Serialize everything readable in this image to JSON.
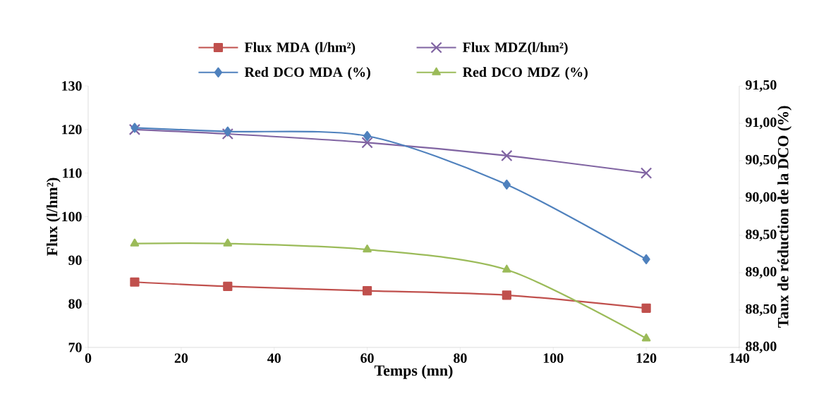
{
  "chart_data": {
    "type": "line",
    "xlabel": "Temps (mn)",
    "ylabel": "Flux (l/hm²)",
    "y2label": "Taux de réduction de la DCO (%)",
    "x": [
      10,
      30,
      60,
      90,
      120
    ],
    "series": [
      {
        "name": "Flux MDA (l/hm²)",
        "color": "#c0504d",
        "marker": "square",
        "values": [
          85,
          84,
          83,
          82,
          79
        ]
      },
      {
        "name": "Flux MDZ(l/hm²)",
        "color": "#8064a2",
        "marker": "cross",
        "values": [
          120,
          119,
          117,
          114,
          110
        ]
      },
      {
        "name": "Red DCO MDA (%)",
        "color": "#4f81bd",
        "marker": "diamond",
        "axis": "y2",
        "values": [
          90.94,
          90.89,
          90.83,
          90.18,
          89.18
        ]
      },
      {
        "name": "Red DCO MDZ (%)",
        "color": "#9bbb59",
        "marker": "triangle",
        "axis": "y2",
        "values": [
          89.39,
          89.39,
          89.31,
          89.04,
          88.12
        ]
      }
    ],
    "xlim": [
      0,
      140
    ],
    "xticks": [
      0,
      20,
      40,
      60,
      80,
      100,
      120,
      140
    ],
    "ylim": [
      70,
      130
    ],
    "yticks": [
      70,
      80,
      90,
      100,
      110,
      120,
      130
    ],
    "y2lim": [
      88,
      91.5
    ],
    "y2ticks": [
      {
        "value": 88,
        "label": "88,00"
      },
      {
        "value": 88.5,
        "label": "88,50"
      },
      {
        "value": 89,
        "label": "89,00"
      },
      {
        "value": 89.5,
        "label": "89,50"
      },
      {
        "value": 90,
        "label": "90,00"
      },
      {
        "value": 90.5,
        "label": "90,50"
      },
      {
        "value": 91,
        "label": "91,00"
      },
      {
        "value": 91.5,
        "label": "91,50"
      }
    ],
    "legend": "top"
  }
}
